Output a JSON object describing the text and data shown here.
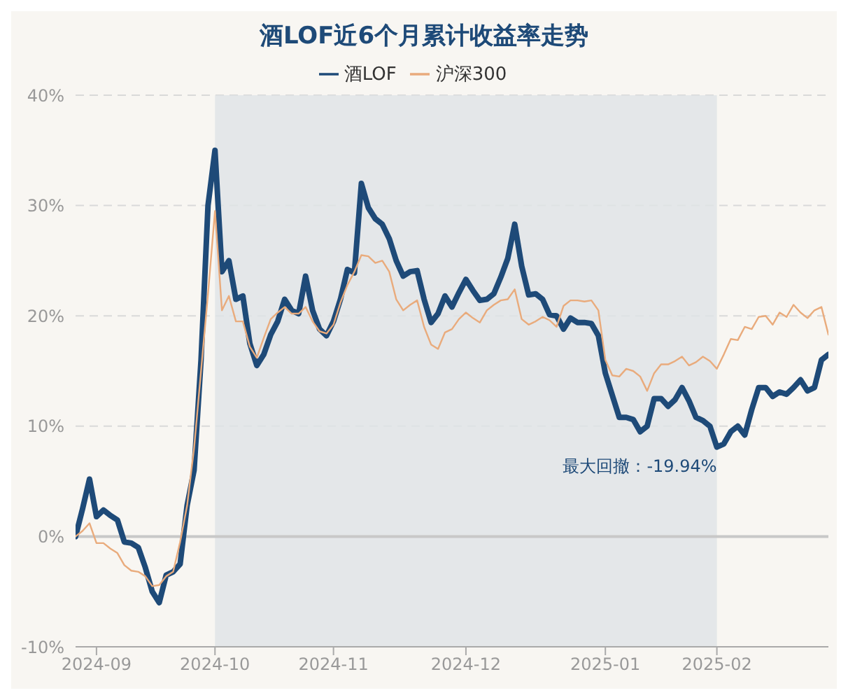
{
  "chart_data": {
    "type": "line",
    "title": "酒LOF近6个月累计收益率走势",
    "categories": [
      null,
      null,
      null,
      "2024-09",
      null,
      null,
      null,
      null,
      null,
      null,
      null,
      null,
      null,
      null,
      null,
      null,
      null,
      null,
      null,
      null,
      "2024-10",
      null,
      null,
      null,
      null,
      null,
      null,
      null,
      null,
      null,
      null,
      null,
      null,
      null,
      null,
      null,
      null,
      "2024-11",
      null,
      null,
      null,
      null,
      null,
      null,
      null,
      null,
      null,
      null,
      null,
      null,
      null,
      null,
      null,
      null,
      null,
      null,
      "2024-12",
      null,
      null,
      null,
      null,
      null,
      null,
      null,
      null,
      null,
      null,
      null,
      null,
      null,
      null,
      null,
      null,
      null,
      null,
      null,
      "2025-01",
      null,
      null,
      null,
      null,
      null,
      null,
      null,
      null,
      null,
      null,
      null,
      null,
      null,
      null,
      null,
      "2025-02",
      null,
      null,
      null,
      null,
      null,
      null,
      null,
      null,
      null,
      null,
      null,
      null,
      null,
      null,
      null,
      null
    ],
    "series": [
      {
        "name": "酒LOF",
        "color": "#1e4a78",
        "values": [
          0,
          2.5,
          5.2,
          1.8,
          2.4,
          1.9,
          1.5,
          -0.5,
          -0.6,
          -1.0,
          -2.8,
          -5.0,
          -6.0,
          -3.5,
          -3.2,
          -2.5,
          2.8,
          6,
          16,
          30,
          35,
          24,
          25,
          21.5,
          21.8,
          17.5,
          15.5,
          16.5,
          18.3,
          19.5,
          21.5,
          20.5,
          20.2,
          23.6,
          20.5,
          18.8,
          18.2,
          19.5,
          21.5,
          24.2,
          23.9,
          32,
          29.8,
          28.8,
          28.3,
          27,
          25,
          23.6,
          24,
          24.1,
          21.5,
          19.4,
          20.2,
          21.8,
          20.8,
          22.1,
          23.3,
          22.3,
          21.4,
          21.5,
          22,
          23.5,
          25.2,
          28.3,
          24.5,
          21.9,
          22,
          21.5,
          20.1,
          20,
          18.8,
          19.8,
          19.4,
          19.4,
          19.3,
          18.2,
          14.8,
          12.8,
          10.8,
          10.8,
          10.6,
          9.5,
          10,
          12.5,
          12.5,
          11.8,
          12.4,
          13.5,
          12.3,
          10.8,
          10.5,
          10.0,
          8.1,
          8.4,
          9.5,
          10,
          9.2,
          11.5,
          13.5,
          13.5,
          12.7,
          13.1,
          12.9,
          13.5,
          14.2,
          13.2,
          13.5,
          16,
          16.5
        ]
      },
      {
        "name": "沪深300",
        "color": "#e9ab7c",
        "values": [
          0,
          0.5,
          1.2,
          -0.6,
          -0.6,
          -1.1,
          -1.5,
          -2.6,
          -3.1,
          -3.2,
          -3.6,
          -4.5,
          -4.4,
          -3.6,
          -3.2,
          -0.5,
          2.8,
          8,
          15,
          22,
          29.5,
          20.5,
          21.8,
          19.5,
          19.5,
          17.2,
          16.2,
          18,
          19.7,
          20.3,
          20.8,
          20.2,
          20.2,
          20.8,
          19.5,
          18.6,
          18.4,
          19.2,
          21.2,
          22.8,
          24,
          25.5,
          25.4,
          24.8,
          25,
          24,
          21.5,
          20.5,
          21,
          21.4,
          19,
          17.4,
          17,
          18.5,
          18.8,
          19.7,
          20.3,
          19.8,
          19.4,
          20.5,
          21,
          21.4,
          21.5,
          22.4,
          19.7,
          19.2,
          19.5,
          19.9,
          19.6,
          19,
          20.9,
          21.4,
          21.4,
          21.3,
          21.4,
          20.5,
          16,
          14.6,
          14.5,
          15.2,
          15,
          14.5,
          13.2,
          14.8,
          15.6,
          15.6,
          15.9,
          16.3,
          15.5,
          15.8,
          16.3,
          15.9,
          15.2,
          16.5,
          17.9,
          17.8,
          19,
          18.8,
          19.9,
          20,
          19.2,
          20.3,
          19.9,
          21,
          20.3,
          19.8,
          20.5,
          20.8,
          18.3
        ]
      }
    ],
    "ylim": [
      -10,
      40
    ],
    "yticks": [
      {
        "value": -10,
        "label": "-10%"
      },
      {
        "value": 0,
        "label": "0%"
      },
      {
        "value": 10,
        "label": "10%"
      },
      {
        "value": 20,
        "label": "20%"
      },
      {
        "value": 30,
        "label": "30%"
      },
      {
        "value": 40,
        "label": "40%"
      }
    ],
    "grid": "y",
    "legend": "top",
    "marker": "none",
    "line_style": "solid",
    "ref_lines": [
      {
        "axis": "y",
        "value": 0,
        "color": "#c8c8c8"
      }
    ],
    "bands": [
      {
        "axis": "x",
        "from": "2024-10",
        "to": "2025-02",
        "label": "最大回撤：-19.94%",
        "color": "#dfe3e6"
      }
    ]
  }
}
